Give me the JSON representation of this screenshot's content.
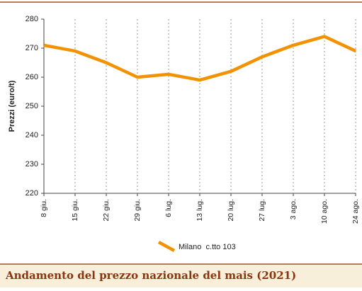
{
  "chart_data": {
    "type": "line",
    "title": "Andamento del prezzo nazionale del mais (2021)",
    "y_label": "Prezzi (euro/t)",
    "categories": [
      "8 giu.",
      "15 giu.",
      "22 giu.",
      "29 giu.",
      "6 lug.",
      "13 lug.",
      "20 lug.",
      "27 lug.",
      "3 ago.",
      "10 ago.",
      "24 ago."
    ],
    "series": [
      {
        "name": "Milano  c.tto 103",
        "color": "#f39200",
        "values": [
          271,
          269,
          265,
          260,
          261,
          259,
          262,
          267,
          271,
          274,
          269
        ]
      }
    ],
    "ylim": [
      220,
      280
    ],
    "yticks": [
      220,
      230,
      240,
      250,
      260,
      270,
      280
    ],
    "grid": true
  }
}
